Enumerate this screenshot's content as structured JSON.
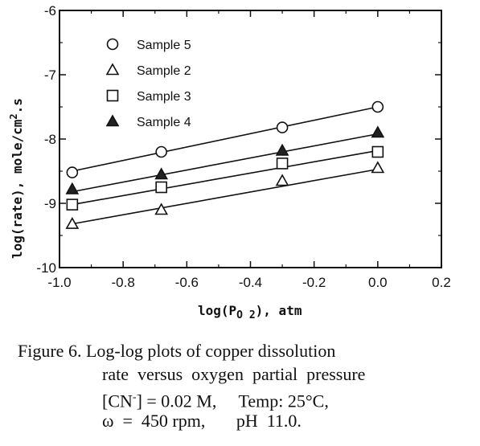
{
  "chart_data": {
    "type": "scatter",
    "xlabel": "log(P",
    "xlabel_sub": "O 2",
    "xlabel_tail": "),  atm",
    "ylabel": "log(rate),   mole/cm",
    "ylabel_sup": "2",
    "ylabel_tail": ".s",
    "xlim": [
      -1.0,
      0.2
    ],
    "ylim": [
      -10,
      -6
    ],
    "x_ticks": [
      "-1.0",
      "-0.8",
      "-0.6",
      "-0.4",
      "-0.2",
      "0.0",
      "0.2"
    ],
    "y_ticks": [
      "-6",
      "-7",
      "-8",
      "-9",
      "-10"
    ],
    "grid": false,
    "legend_position": "top-left",
    "series": [
      {
        "name": "Sample 5",
        "marker": "open-circle",
        "x": [
          -0.96,
          -0.68,
          -0.3,
          0.0
        ],
        "y": [
          -8.52,
          -8.2,
          -7.82,
          -7.5
        ],
        "fit": [
          [
            -0.96,
            -8.5
          ],
          [
            0.0,
            -7.5
          ]
        ]
      },
      {
        "name": "Sample 2",
        "marker": "open-triangle",
        "x": [
          -0.96,
          -0.68,
          -0.3,
          0.0
        ],
        "y": [
          -9.32,
          -9.1,
          -8.65,
          -8.45
        ],
        "fit": [
          [
            -0.96,
            -9.32
          ],
          [
            0.0,
            -8.47
          ]
        ]
      },
      {
        "name": "Sample 3",
        "marker": "open-square",
        "x": [
          -0.96,
          -0.68,
          -0.3,
          0.0
        ],
        "y": [
          -9.02,
          -8.75,
          -8.38,
          -8.2
        ],
        "fit": [
          [
            -0.96,
            -9.02
          ],
          [
            0.0,
            -8.18
          ]
        ]
      },
      {
        "name": "Sample 4",
        "marker": "filled-triangle",
        "x": [
          -0.96,
          -0.68,
          -0.3,
          0.0
        ],
        "y": [
          -8.78,
          -8.55,
          -8.18,
          -7.9
        ],
        "fit": [
          [
            -0.96,
            -8.82
          ],
          [
            0.0,
            -7.92
          ]
        ]
      }
    ]
  },
  "caption": {
    "line1": "Figure 6. Log-log plots of copper dissolution",
    "line2": "rate  versus  oxygen  partial  pressure",
    "line3a": "[CN",
    "line3b": "-",
    "line3c": "] = 0.02 M,     Temp: 25°C,",
    "line4": "ω  =  450 rpm,       pH  11.0."
  }
}
